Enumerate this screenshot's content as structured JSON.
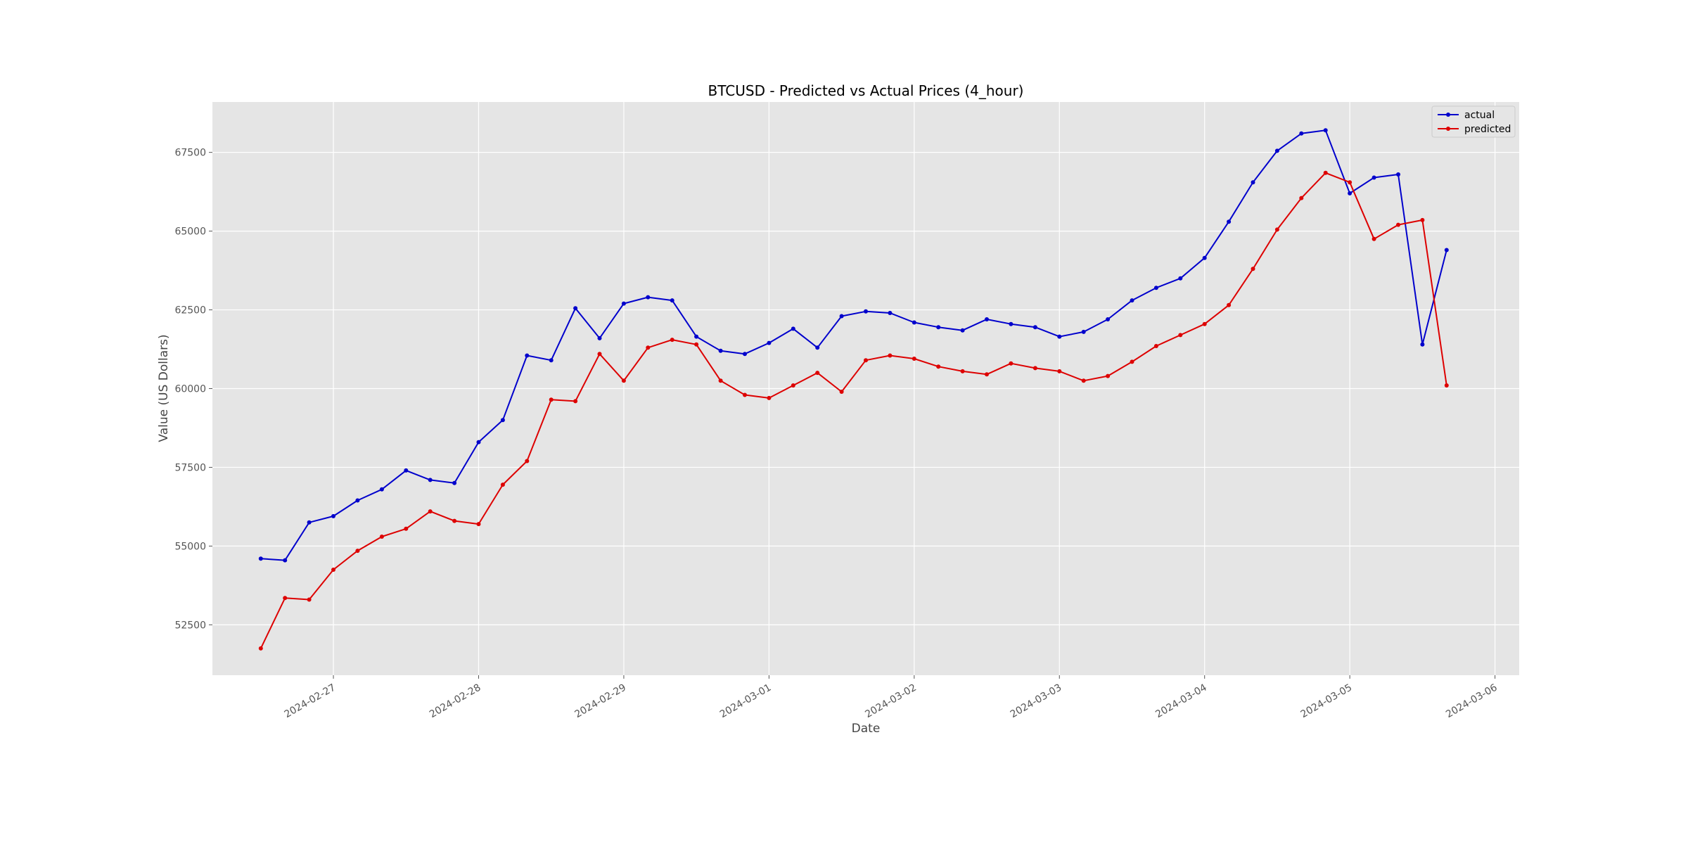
{
  "chart_data": {
    "type": "line",
    "title": "BTCUSD - Predicted vs Actual Prices (4_hour)",
    "xlabel": "Date",
    "ylabel": "Value (US Dollars)",
    "x_start": "2024-02-26T12:00",
    "x_step_hours": 4,
    "xlim": [
      "2024-02-26T04:00",
      "2024-03-06T04:00"
    ],
    "ylim": [
      50900,
      69100
    ],
    "x_ticks": [
      "2024-02-27",
      "2024-02-28",
      "2024-02-29",
      "2024-03-01",
      "2024-03-02",
      "2024-03-03",
      "2024-03-04",
      "2024-03-05",
      "2024-03-06"
    ],
    "y_ticks": [
      52500,
      55000,
      57500,
      60000,
      62500,
      65000,
      67500
    ],
    "y_tick_labels": [
      "52500",
      "55000",
      "57500",
      "60000",
      "62500",
      "65000",
      "67500"
    ],
    "grid": true,
    "legend_position": "top-right",
    "series": [
      {
        "name": "actual",
        "color": "#0000cc",
        "values": [
          54600,
          54550,
          55750,
          55950,
          56450,
          56800,
          57400,
          57100,
          57000,
          58300,
          59000,
          61050,
          60900,
          62550,
          61600,
          62700,
          62900,
          62800,
          61650,
          61200,
          61100,
          61450,
          61900,
          61300,
          62300,
          62450,
          62400,
          62100,
          61950,
          61850,
          62200,
          62050,
          61950,
          61650,
          61800,
          62200,
          62800,
          63200,
          63500,
          64150,
          65300,
          66550,
          67550,
          68100,
          68200,
          66200,
          66700,
          66800,
          61400,
          64400
        ]
      },
      {
        "name": "predicted",
        "color": "#dd0000",
        "values": [
          51750,
          53350,
          53300,
          54250,
          54850,
          55300,
          55550,
          56100,
          55800,
          55700,
          56950,
          57700,
          59650,
          59600,
          61100,
          60250,
          61300,
          61550,
          61400,
          60250,
          59800,
          59700,
          60100,
          60500,
          59900,
          60900,
          61050,
          60950,
          60700,
          60550,
          60450,
          60800,
          60650,
          60550,
          60250,
          60400,
          60850,
          61350,
          61700,
          62050,
          62650,
          63800,
          65050,
          66050,
          66850,
          66550,
          64750,
          65200,
          65350,
          60100
        ]
      }
    ]
  }
}
